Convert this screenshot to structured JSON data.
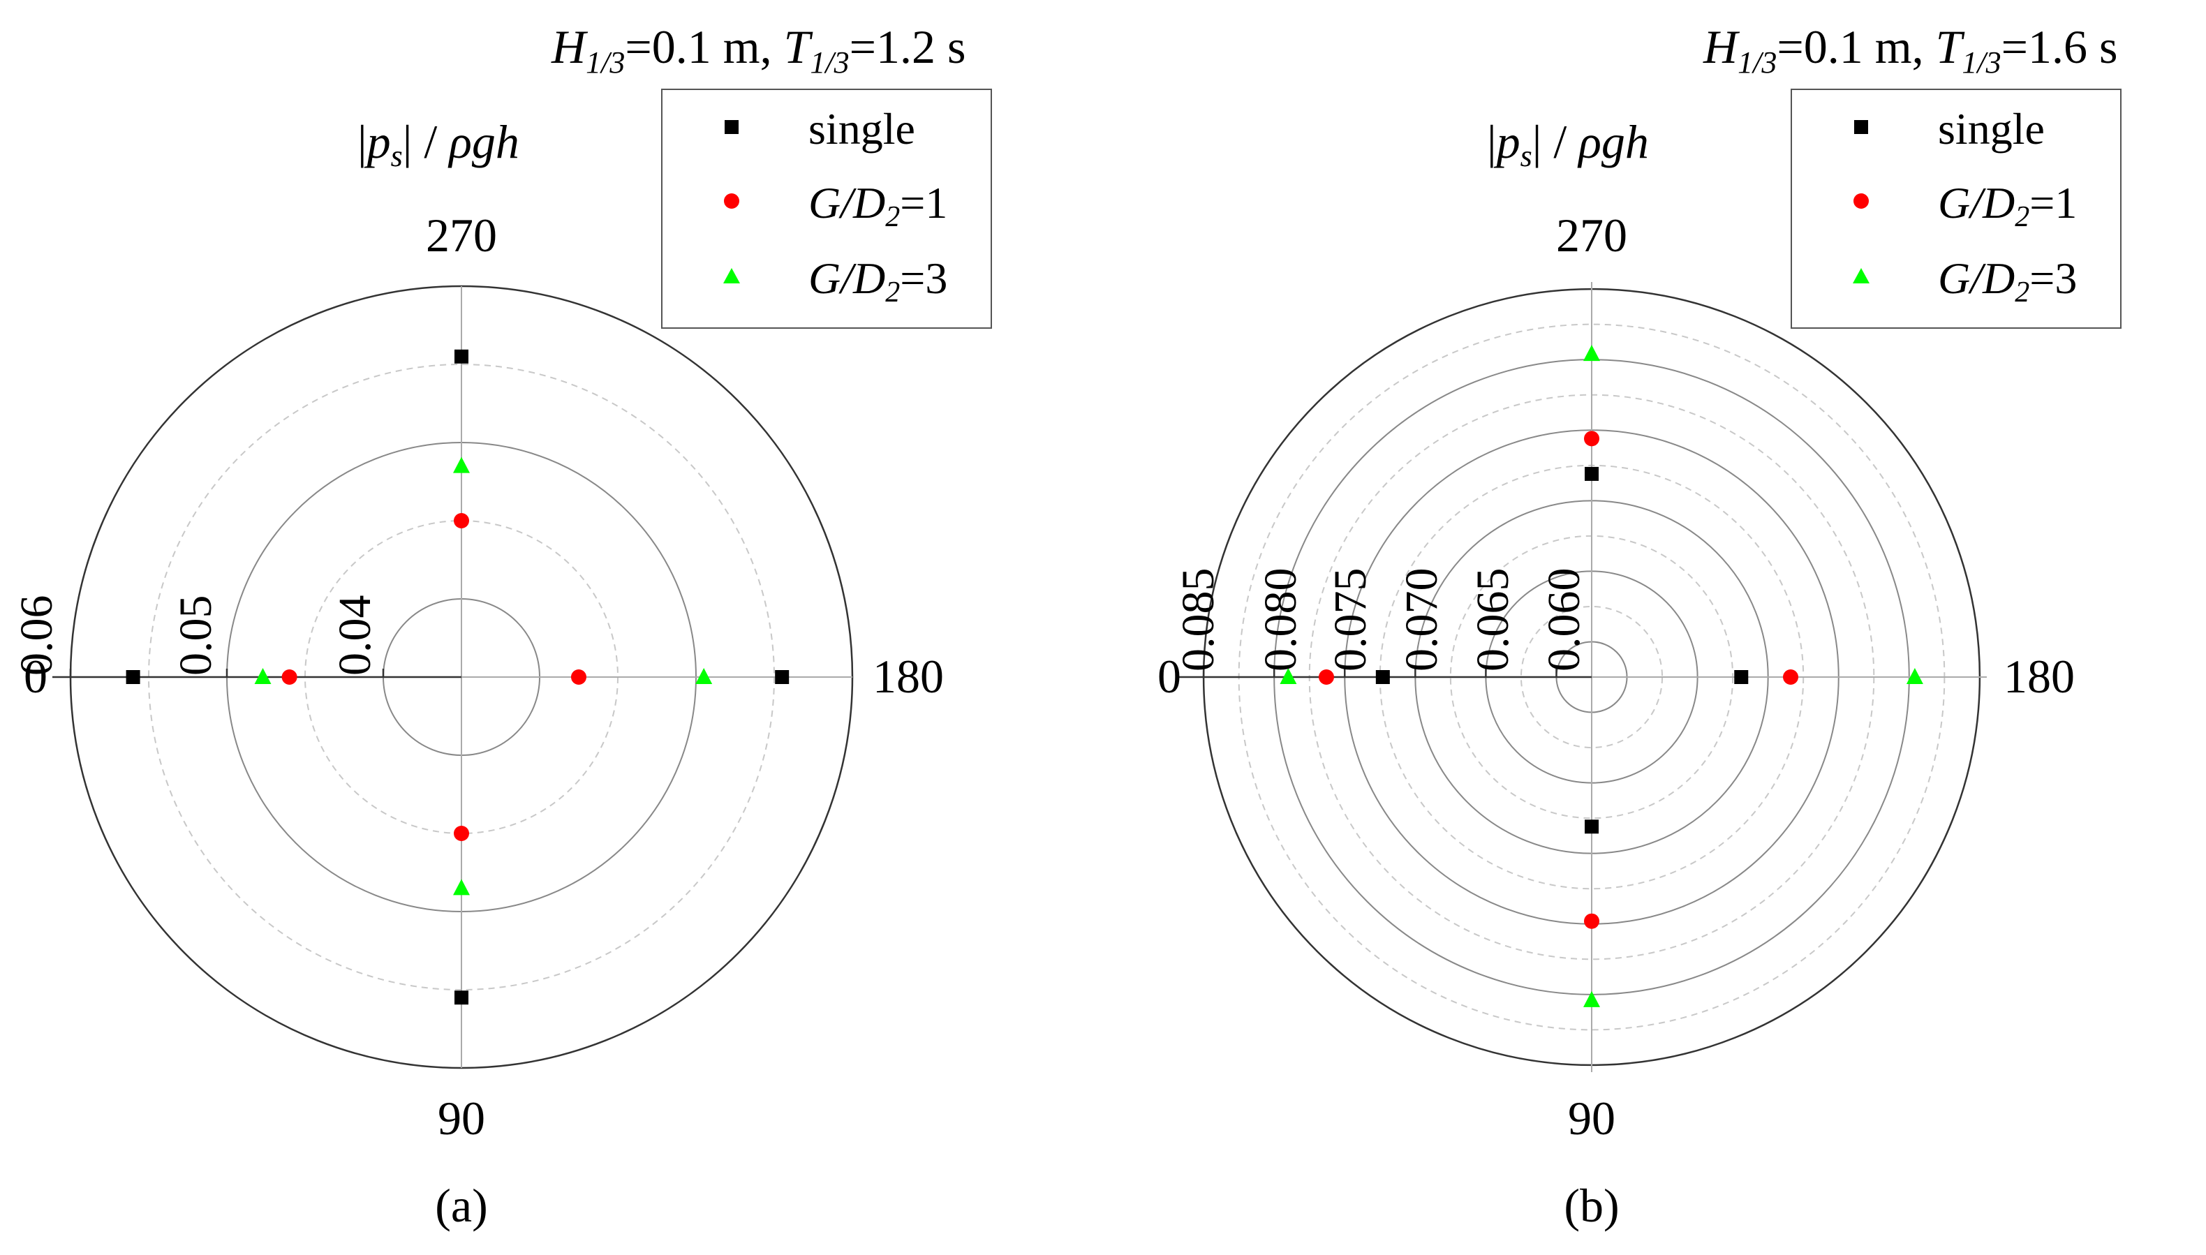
{
  "figure": {
    "panel_labels": [
      "(a)",
      "(b)"
    ]
  },
  "chart_data": [
    {
      "type": "scatter",
      "subtype": "polar",
      "panel": "(a)",
      "title": {
        "H": "H",
        "H_sub": "1/3",
        "h_val": "=0.1 m, ",
        "T": "T",
        "T_sub": "1/3",
        "t_val": "=1.2 s"
      },
      "radial_label": {
        "bar1": "|",
        "p": "p",
        "p_sub": "s",
        "bar2": "| / ",
        "rho": "ρgh"
      },
      "angle_ticks": [
        "270",
        "180",
        "90",
        "0"
      ],
      "angles_deg": [
        0,
        90,
        180,
        270
      ],
      "r_range": [
        0.035,
        0.06
      ],
      "radial_ticks": [
        "0.06",
        "0.05",
        "0.04"
      ],
      "radial_tick_values": [
        0.06,
        0.05,
        0.04
      ],
      "gridlines": {
        "major": [
          0.04,
          0.05,
          0.06
        ],
        "minor": [
          0.045,
          0.055
        ]
      },
      "legend_position": "top-right",
      "series": [
        {
          "name": "single",
          "marker": "square",
          "color": "#000000",
          "values": [
            0.056,
            0.0555,
            0.0555,
            0.0555
          ]
        },
        {
          "name": "G/D2=1",
          "label": {
            "a": "G/D",
            "sub": "2",
            "b": "=1"
          },
          "marker": "circle",
          "color": "#ff0000",
          "values": [
            0.046,
            0.045,
            0.0425,
            0.045
          ]
        },
        {
          "name": "G/D2=3",
          "label": {
            "a": "G/D",
            "sub": "2",
            "b": "=3"
          },
          "marker": "triangle",
          "color": "#00ff00",
          "values": [
            0.0477,
            0.0485,
            0.0505,
            0.0485
          ]
        }
      ]
    },
    {
      "type": "scatter",
      "subtype": "polar",
      "panel": "(b)",
      "title": {
        "H": "H",
        "H_sub": "1/3",
        "h_val": "=0.1 m, ",
        "T": "T",
        "T_sub": "1/3",
        "t_val": "=1.6 s"
      },
      "radial_label": {
        "bar1": "|",
        "p": "p",
        "p_sub": "s",
        "bar2": "| / ",
        "rho": "ρgh"
      },
      "angle_ticks": [
        "270",
        "180",
        "90",
        "0"
      ],
      "angles_deg": [
        0,
        90,
        180,
        270
      ],
      "r_range": [
        0.0575,
        0.0855
      ],
      "radial_ticks": [
        "0.085",
        "0.080",
        "0.075",
        "0.070",
        "0.065",
        "0.060"
      ],
      "radial_tick_values": [
        0.085,
        0.08,
        0.075,
        0.07,
        0.065,
        0.06
      ],
      "gridlines": {
        "major": [
          0.06,
          0.065,
          0.07,
          0.075,
          0.08,
          0.085
        ],
        "minor": [
          0.0625,
          0.0675,
          0.0725,
          0.0775,
          0.0825
        ]
      },
      "legend_position": "top-right",
      "series": [
        {
          "name": "single",
          "marker": "square",
          "color": "#000000",
          "values": [
            0.0723,
            0.0681,
            0.0681,
            0.0719
          ]
        },
        {
          "name": "G/D2=1",
          "label": {
            "a": "G/D",
            "sub": "2",
            "b": "=1"
          },
          "marker": "circle",
          "color": "#ff0000",
          "values": [
            0.0763,
            0.0748,
            0.0716,
            0.0744
          ]
        },
        {
          "name": "G/D2=3",
          "label": {
            "a": "G/D",
            "sub": "2",
            "b": "=3"
          },
          "marker": "triangle",
          "color": "#00ff00",
          "values": [
            0.079,
            0.0804,
            0.0804,
            0.0804
          ]
        }
      ]
    }
  ]
}
